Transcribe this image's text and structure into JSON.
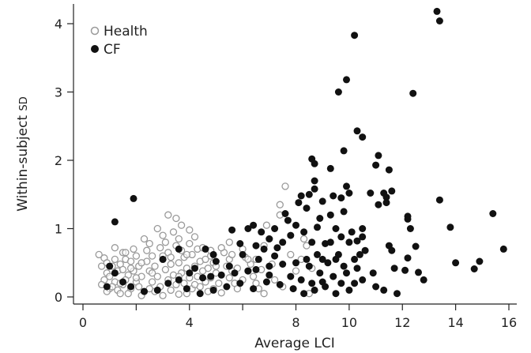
{
  "chart_data": {
    "type": "scatter",
    "xlabel": "Average LCI",
    "ylabel_main": "Within-subject ",
    "ylabel_sc": "SD",
    "xlim": [
      0,
      16.2
    ],
    "ylim": [
      0,
      4.2
    ],
    "xticks": [
      0,
      2,
      4,
      6,
      8,
      10,
      12,
      14,
      16
    ],
    "xtick_labels": [
      "0",
      "",
      "4",
      "",
      "8",
      "10",
      "12",
      "14",
      "16"
    ],
    "yticks": [
      0,
      1,
      2,
      3,
      4
    ],
    "ytick_labels": [
      "0",
      "1",
      "2",
      "3",
      "4"
    ],
    "legend_position": "top-left",
    "series": [
      {
        "name": "Health",
        "marker": "open-circle",
        "color": "#9a9a9a",
        "points": [
          [
            0.6,
            0.62
          ],
          [
            0.8,
            0.57
          ],
          [
            0.7,
            0.45
          ],
          [
            0.9,
            0.35
          ],
          [
            0.8,
            0.25
          ],
          [
            0.7,
            0.18
          ],
          [
            1.0,
            0.12
          ],
          [
            0.9,
            0.08
          ],
          [
            1.2,
            0.55
          ],
          [
            1.1,
            0.45
          ],
          [
            1.3,
            0.38
          ],
          [
            1.0,
            0.3
          ],
          [
            1.2,
            0.22
          ],
          [
            1.1,
            0.15
          ],
          [
            1.3,
            0.1
          ],
          [
            1.4,
            0.05
          ],
          [
            1.2,
            0.72
          ],
          [
            1.5,
            0.65
          ],
          [
            1.6,
            0.55
          ],
          [
            1.4,
            0.48
          ],
          [
            1.5,
            0.4
          ],
          [
            1.7,
            0.32
          ],
          [
            1.6,
            0.25
          ],
          [
            1.5,
            0.18
          ],
          [
            1.8,
            0.12
          ],
          [
            1.7,
            0.05
          ],
          [
            1.9,
            0.7
          ],
          [
            2.0,
            0.6
          ],
          [
            1.8,
            0.52
          ],
          [
            2.1,
            0.45
          ],
          [
            1.9,
            0.38
          ],
          [
            2.2,
            0.3
          ],
          [
            2.0,
            0.22
          ],
          [
            2.1,
            0.15
          ],
          [
            2.3,
            0.08
          ],
          [
            2.2,
            0.02
          ],
          [
            2.3,
            0.85
          ],
          [
            2.5,
            0.78
          ],
          [
            2.4,
            0.68
          ],
          [
            2.6,
            0.6
          ],
          [
            2.4,
            0.52
          ],
          [
            2.7,
            0.45
          ],
          [
            2.5,
            0.38
          ],
          [
            2.8,
            0.3
          ],
          [
            2.6,
            0.22
          ],
          [
            2.9,
            0.15
          ],
          [
            2.7,
            0.08
          ],
          [
            3.0,
            0.02
          ],
          [
            2.8,
            1.0
          ],
          [
            3.0,
            0.9
          ],
          [
            3.1,
            0.8
          ],
          [
            2.9,
            0.72
          ],
          [
            3.2,
            0.65
          ],
          [
            3.0,
            0.55
          ],
          [
            3.3,
            0.48
          ],
          [
            3.1,
            0.4
          ],
          [
            3.4,
            0.32
          ],
          [
            3.2,
            0.25
          ],
          [
            3.5,
            0.18
          ],
          [
            3.3,
            0.1
          ],
          [
            3.6,
            0.04
          ],
          [
            3.4,
            0.95
          ],
          [
            3.6,
            0.85
          ],
          [
            3.5,
            0.75
          ],
          [
            3.7,
            0.68
          ],
          [
            3.8,
            0.58
          ],
          [
            3.6,
            0.5
          ],
          [
            3.9,
            0.42
          ],
          [
            3.7,
            0.35
          ],
          [
            4.0,
            0.28
          ],
          [
            3.8,
            0.2
          ],
          [
            4.1,
            0.12
          ],
          [
            3.9,
            0.05
          ],
          [
            3.2,
            1.2
          ],
          [
            3.5,
            1.15
          ],
          [
            3.7,
            1.05
          ],
          [
            4.0,
            0.98
          ],
          [
            4.2,
            0.88
          ],
          [
            4.0,
            0.78
          ],
          [
            4.3,
            0.7
          ],
          [
            4.1,
            0.62
          ],
          [
            4.4,
            0.52
          ],
          [
            4.2,
            0.45
          ],
          [
            4.5,
            0.38
          ],
          [
            4.3,
            0.3
          ],
          [
            4.6,
            0.22
          ],
          [
            4.4,
            0.15
          ],
          [
            4.7,
            0.08
          ],
          [
            4.5,
            0.72
          ],
          [
            4.8,
            0.6
          ],
          [
            4.9,
            0.5
          ],
          [
            4.7,
            0.42
          ],
          [
            5.0,
            0.35
          ],
          [
            4.8,
            0.28
          ],
          [
            5.1,
            0.2
          ],
          [
            4.9,
            0.12
          ],
          [
            5.2,
            0.06
          ],
          [
            5.3,
            0.65
          ],
          [
            5.5,
            0.55
          ],
          [
            5.4,
            0.45
          ],
          [
            5.6,
            0.38
          ],
          [
            5.5,
            0.28
          ],
          [
            5.7,
            0.2
          ],
          [
            5.8,
            0.12
          ],
          [
            6.0,
            0.7
          ],
          [
            6.1,
            0.58
          ],
          [
            6.3,
            0.48
          ],
          [
            6.2,
            0.38
          ],
          [
            6.4,
            0.3
          ],
          [
            6.5,
            0.2
          ],
          [
            6.6,
            0.12
          ],
          [
            6.8,
            0.05
          ],
          [
            4.8,
            0.68
          ],
          [
            5.2,
            0.72
          ],
          [
            5.8,
            0.42
          ],
          [
            6.0,
            0.25
          ],
          [
            6.5,
            0.55
          ],
          [
            6.7,
            0.4
          ],
          [
            5.5,
            0.8
          ],
          [
            3.0,
            0.6
          ],
          [
            2.2,
            0.5
          ],
          [
            1.8,
            0.42
          ],
          [
            2.6,
            0.35
          ],
          [
            3.3,
            0.58
          ],
          [
            4.6,
            0.55
          ],
          [
            3.9,
            0.62
          ],
          [
            1.6,
            0.65
          ],
          [
            2.0,
            0.28
          ],
          [
            7.4,
            1.2
          ],
          [
            7.6,
            1.62
          ],
          [
            7.4,
            1.35
          ],
          [
            6.9,
            1.05
          ],
          [
            7.0,
            0.85
          ],
          [
            8.4,
            0.75
          ],
          [
            8.2,
            0.55
          ],
          [
            8.6,
            0.42
          ],
          [
            8.5,
            0.05
          ],
          [
            7.2,
            0.25
          ],
          [
            7.8,
            0.62
          ],
          [
            8.0,
            0.38
          ],
          [
            6.8,
            0.75
          ],
          [
            7.1,
            0.48
          ],
          [
            8.3,
            0.85
          ],
          [
            7.5,
            0.15
          ],
          [
            5.6,
            0.62
          ],
          [
            4.2,
            0.18
          ],
          [
            3.6,
            0.3
          ],
          [
            2.5,
            0.12
          ],
          [
            1.4,
            0.2
          ],
          [
            0.9,
            0.5
          ],
          [
            5.0,
            0.45
          ],
          [
            6.2,
            0.55
          ]
        ]
      },
      {
        "name": "CF",
        "marker": "filled-circle",
        "color": "#111111",
        "points": [
          [
            13.3,
            4.18
          ],
          [
            13.4,
            4.04
          ],
          [
            10.2,
            3.83
          ],
          [
            9.9,
            3.18
          ],
          [
            9.6,
            3.0
          ],
          [
            12.4,
            2.98
          ],
          [
            10.3,
            2.43
          ],
          [
            10.5,
            2.34
          ],
          [
            9.8,
            2.14
          ],
          [
            11.1,
            2.07
          ],
          [
            8.6,
            2.02
          ],
          [
            8.7,
            1.95
          ],
          [
            11.0,
            1.93
          ],
          [
            9.3,
            1.88
          ],
          [
            11.5,
            1.86
          ],
          [
            8.7,
            1.7
          ],
          [
            9.9,
            1.62
          ],
          [
            8.7,
            1.58
          ],
          [
            10.0,
            1.52
          ],
          [
            10.8,
            1.52
          ],
          [
            11.3,
            1.52
          ],
          [
            11.6,
            1.55
          ],
          [
            11.4,
            1.46
          ],
          [
            9.4,
            1.48
          ],
          [
            8.5,
            1.5
          ],
          [
            9.7,
            1.45
          ],
          [
            8.2,
            1.48
          ],
          [
            9.0,
            1.4
          ],
          [
            11.4,
            1.38
          ],
          [
            11.1,
            1.35
          ],
          [
            12.2,
            1.18
          ],
          [
            12.2,
            1.14
          ],
          [
            13.4,
            1.42
          ],
          [
            15.4,
            1.22
          ],
          [
            13.8,
            1.02
          ],
          [
            12.3,
            1.0
          ],
          [
            10.5,
            1.0
          ],
          [
            9.8,
            1.25
          ],
          [
            9.3,
            1.2
          ],
          [
            8.9,
            1.15
          ],
          [
            8.4,
            1.3
          ],
          [
            7.6,
            1.22
          ],
          [
            8.0,
            1.05
          ],
          [
            8.8,
            1.02
          ],
          [
            9.5,
            1.0
          ],
          [
            10.1,
            0.95
          ],
          [
            10.5,
            0.88
          ],
          [
            9.7,
            0.88
          ],
          [
            8.3,
            0.95
          ],
          [
            7.8,
            0.9
          ],
          [
            7.0,
            0.85
          ],
          [
            7.5,
            0.8
          ],
          [
            8.6,
            0.8
          ],
          [
            9.1,
            0.78
          ],
          [
            10.0,
            0.8
          ],
          [
            10.3,
            0.82
          ],
          [
            11.5,
            0.75
          ],
          [
            11.6,
            0.68
          ],
          [
            12.5,
            0.74
          ],
          [
            12.2,
            0.57
          ],
          [
            15.8,
            0.7
          ],
          [
            14.0,
            0.5
          ],
          [
            14.9,
            0.52
          ],
          [
            14.7,
            0.41
          ],
          [
            12.6,
            0.36
          ],
          [
            12.8,
            0.25
          ],
          [
            12.1,
            0.39
          ],
          [
            11.7,
            0.42
          ],
          [
            10.9,
            0.35
          ],
          [
            10.3,
            0.42
          ],
          [
            9.8,
            0.45
          ],
          [
            9.5,
            0.55
          ],
          [
            9.2,
            0.5
          ],
          [
            9.0,
            0.55
          ],
          [
            8.8,
            0.62
          ],
          [
            8.4,
            0.55
          ],
          [
            8.0,
            0.5
          ],
          [
            7.5,
            0.48
          ],
          [
            7.0,
            0.45
          ],
          [
            6.5,
            0.4
          ],
          [
            6.2,
            0.38
          ],
          [
            5.7,
            0.35
          ],
          [
            5.2,
            0.32
          ],
          [
            4.8,
            0.3
          ],
          [
            4.5,
            0.28
          ],
          [
            4.0,
            0.35
          ],
          [
            3.6,
            0.25
          ],
          [
            3.2,
            0.2
          ],
          [
            2.8,
            0.1
          ],
          [
            2.3,
            0.08
          ],
          [
            1.8,
            0.15
          ],
          [
            1.5,
            0.22
          ],
          [
            1.2,
            0.35
          ],
          [
            1.0,
            0.45
          ],
          [
            0.9,
            0.15
          ],
          [
            1.2,
            1.1
          ],
          [
            1.9,
            1.44
          ],
          [
            3.0,
            0.55
          ],
          [
            3.6,
            0.7
          ],
          [
            4.2,
            0.42
          ],
          [
            4.9,
            0.62
          ],
          [
            5.5,
            0.45
          ],
          [
            6.0,
            0.62
          ],
          [
            6.6,
            0.55
          ],
          [
            7.2,
            0.6
          ],
          [
            7.8,
            0.3
          ],
          [
            8.2,
            0.25
          ],
          [
            8.6,
            0.2
          ],
          [
            9.0,
            0.22
          ],
          [
            9.4,
            0.3
          ],
          [
            9.7,
            0.2
          ],
          [
            10.0,
            0.1
          ],
          [
            9.5,
            0.05
          ],
          [
            9.1,
            0.15
          ],
          [
            8.7,
            0.1
          ],
          [
            8.3,
            0.05
          ],
          [
            7.9,
            0.12
          ],
          [
            7.4,
            0.18
          ],
          [
            6.9,
            0.22
          ],
          [
            6.4,
            0.12
          ],
          [
            5.9,
            0.2
          ],
          [
            5.4,
            0.15
          ],
          [
            4.9,
            0.1
          ],
          [
            4.4,
            0.05
          ],
          [
            3.9,
            0.12
          ],
          [
            6.2,
            1.0
          ],
          [
            6.7,
            0.95
          ],
          [
            7.2,
            1.0
          ],
          [
            7.7,
            1.12
          ],
          [
            8.1,
            1.38
          ],
          [
            6.4,
            1.05
          ],
          [
            5.6,
            0.98
          ],
          [
            5.9,
            0.78
          ],
          [
            6.8,
            0.7
          ],
          [
            7.3,
            0.72
          ],
          [
            8.5,
            0.45
          ],
          [
            8.9,
            0.35
          ],
          [
            9.3,
            0.8
          ],
          [
            9.6,
            0.62
          ],
          [
            10.2,
            0.55
          ],
          [
            10.4,
            0.62
          ],
          [
            10.6,
            0.68
          ],
          [
            9.9,
            0.35
          ],
          [
            10.2,
            0.2
          ],
          [
            10.5,
            0.25
          ],
          [
            11.0,
            0.15
          ],
          [
            11.3,
            0.1
          ],
          [
            11.8,
            0.05
          ],
          [
            7.0,
            0.32
          ],
          [
            6.5,
            0.75
          ],
          [
            5.0,
            0.52
          ],
          [
            4.6,
            0.7
          ]
        ]
      }
    ]
  }
}
